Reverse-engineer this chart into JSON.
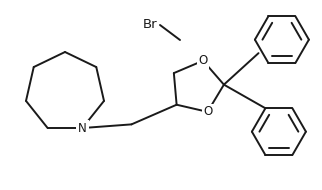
{
  "bg_color": "#ffffff",
  "line_color": "#1a1a1a",
  "line_width": 1.4,
  "font_size_label": 8.5,
  "br_label": "Br",
  "o_label": "O",
  "n_label": "N",
  "figsize": [
    3.22,
    1.9
  ],
  "dpi": 100,
  "xlim": [
    0,
    322
  ],
  "ylim": [
    0,
    190
  ]
}
